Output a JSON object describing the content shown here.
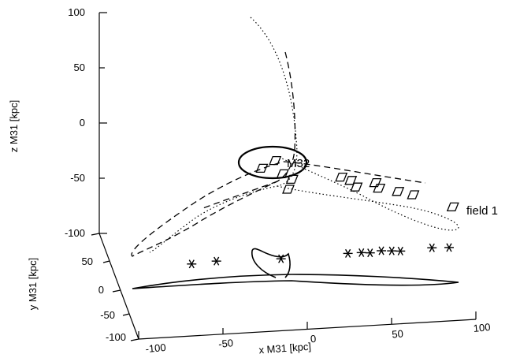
{
  "chart_data": {
    "type": "scatter",
    "projection": "3d",
    "grid": false,
    "axes": {
      "x": {
        "label": "x M31 [kpc]",
        "ticks": [
          "-100",
          "-50",
          "0",
          "50",
          "100"
        ],
        "range": [
          -100,
          100
        ]
      },
      "y": {
        "label": "y M31 [kpc]",
        "ticks": [
          "-100",
          "-50",
          "0",
          "50"
        ],
        "range": [
          -100,
          50
        ]
      },
      "z": {
        "label": "z M31 [kpc]",
        "ticks": [
          "-100",
          "-50",
          "0",
          "50",
          "100"
        ],
        "range": [
          -100,
          100
        ]
      }
    },
    "annotations": [
      {
        "text": "M32",
        "z_label_pos": -47
      },
      {
        "text": "field 1",
        "z_label_pos": -79
      }
    ],
    "series": [
      {
        "marker": "diamond",
        "points": [
          {
            "zpos": -34,
            "x": -7
          },
          {
            "zpos": -41,
            "x": -14
          },
          {
            "zpos": -46,
            "x": -3
          },
          {
            "zpos": -51,
            "x": 2
          },
          {
            "zpos": -60,
            "x": 0
          },
          {
            "zpos": -49,
            "x": 28
          },
          {
            "zpos": -52,
            "x": 33
          },
          {
            "zpos": -58,
            "x": 36
          },
          {
            "zpos": -54,
            "x": 46
          },
          {
            "zpos": -59,
            "x": 48
          },
          {
            "zpos": -62,
            "x": 58
          },
          {
            "zpos": -65,
            "x": 66
          },
          {
            "zpos": -76,
            "x": 87
          }
        ]
      },
      {
        "marker": "asterisk",
        "points": [
          {
            "x": -53,
            "y": 0
          },
          {
            "x": -38,
            "y": 2
          },
          {
            "x": 0,
            "y": 0
          },
          {
            "x": 40,
            "y": 2
          },
          {
            "x": 48,
            "y": 2
          },
          {
            "x": 53,
            "y": 1
          },
          {
            "x": 60,
            "y": 3
          },
          {
            "x": 66,
            "y": 2
          },
          {
            "x": 71,
            "y": 1
          },
          {
            "x": 90,
            "y": 3
          },
          {
            "x": 100,
            "y": 2
          }
        ]
      }
    ]
  }
}
